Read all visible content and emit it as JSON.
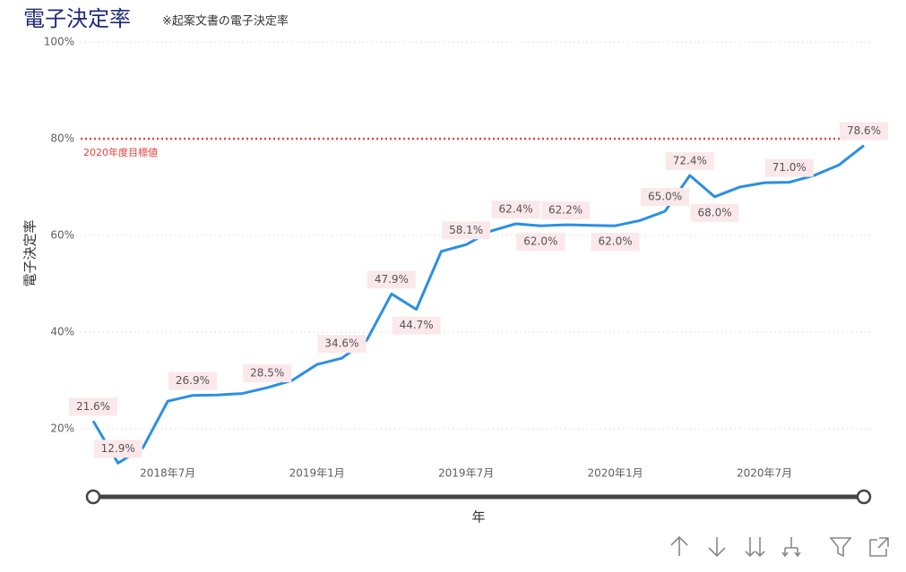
{
  "chart_data": {
    "type": "line",
    "title": "電子決定率",
    "subtitle": "※起案文書の電子決定率",
    "y_label": "電子決定率",
    "x_label": "年",
    "color": "#2b8fe3",
    "x": [
      "2018-04",
      "2018-05",
      "2018-06",
      "2018-07",
      "2018-08",
      "2018-09",
      "2018-10",
      "2018-11",
      "2018-12",
      "2019-01",
      "2019-02",
      "2019-03",
      "2019-04",
      "2019-05",
      "2019-06",
      "2019-07",
      "2019-08",
      "2019-09",
      "2019-10",
      "2019-11",
      "2019-12",
      "2020-01",
      "2020-02",
      "2020-03",
      "2020-04",
      "2020-05",
      "2020-06",
      "2020-07",
      "2020-08",
      "2020-09",
      "2020-10",
      "2020-11"
    ],
    "values": [
      21.6,
      12.9,
      16.1,
      25.7,
      26.9,
      27.0,
      27.3,
      28.5,
      30.0,
      33.3,
      34.6,
      38.3,
      47.9,
      44.7,
      56.7,
      58.1,
      60.9,
      62.4,
      62.0,
      62.2,
      62.1,
      62.0,
      63.1,
      65.0,
      72.4,
      68.0,
      70.0,
      70.9,
      71.0,
      72.4,
      74.6,
      78.6
    ],
    "value_labels": [
      "21.6%",
      "12.9%",
      null,
      null,
      "26.9%",
      null,
      null,
      "28.5%",
      null,
      null,
      "34.6%",
      null,
      "47.9%",
      "44.7%",
      null,
      "58.1%",
      null,
      "62.4%",
      "62.0%",
      "62.2%",
      null,
      "62.0%",
      null,
      "65.0%",
      "72.4%",
      "68.0%",
      null,
      null,
      "71.0%",
      null,
      null,
      "78.6%"
    ],
    "xticks": [
      {
        "value": "2018-07",
        "label": "2018年7月"
      },
      {
        "value": "2019-01",
        "label": "2019年1月"
      },
      {
        "value": "2019-07",
        "label": "2019年7月"
      },
      {
        "value": "2020-01",
        "label": "2020年1月"
      },
      {
        "value": "2020-07",
        "label": "2020年7月"
      }
    ],
    "ylim": [
      10,
      100
    ],
    "yticks": [
      {
        "value": 20,
        "label": "20%"
      },
      {
        "value": 40,
        "label": "40%"
      },
      {
        "value": 60,
        "label": "60%"
      },
      {
        "value": 80,
        "label": "80%"
      },
      {
        "value": 100,
        "label": "100%"
      }
    ],
    "grid": true,
    "reference_line": {
      "value": 80,
      "label": "2020年度目標値",
      "color": "#e8413c"
    }
  }
}
